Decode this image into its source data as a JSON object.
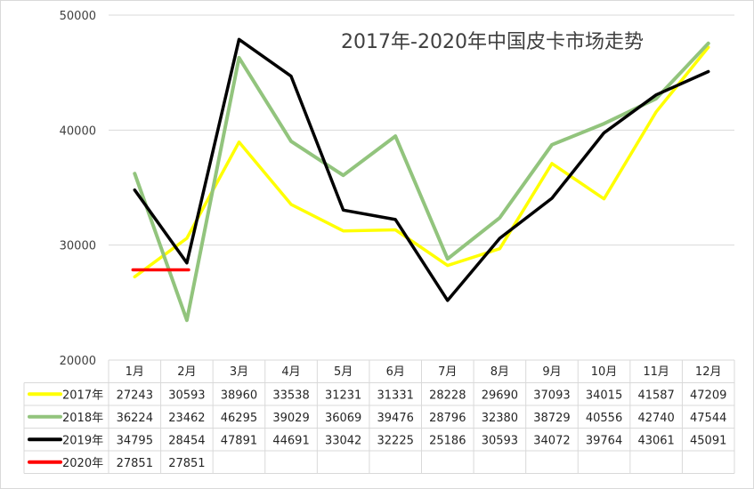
{
  "chart_data": {
    "type": "line",
    "title": "2017年-2020年中国皮卡市场走势",
    "xlabel": "",
    "ylabel": "",
    "categories": [
      "1月",
      "2月",
      "3月",
      "4月",
      "5月",
      "6月",
      "7月",
      "8月",
      "9月",
      "10月",
      "11月",
      "12月"
    ],
    "ylim": [
      20000,
      50000
    ],
    "yticks": [
      20000,
      30000,
      40000,
      50000
    ],
    "grid": true,
    "legend": "data-table-left",
    "series": [
      {
        "name": "2017年",
        "color": "#ffff00",
        "values": [
          27243,
          30593,
          38960,
          33538,
          31231,
          31331,
          28228,
          29690,
          37093,
          34015,
          41587,
          47209
        ]
      },
      {
        "name": "2018年",
        "color": "#92c47d",
        "values": [
          36224,
          23462,
          46295,
          39029,
          36069,
          39476,
          28796,
          32380,
          38729,
          40556,
          42740,
          47544
        ]
      },
      {
        "name": "2019年",
        "color": "#000000",
        "values": [
          34795,
          28454,
          47891,
          44691,
          33042,
          32225,
          25186,
          30593,
          34072,
          39764,
          43061,
          45091
        ]
      },
      {
        "name": "2020年",
        "color": "#ff0000",
        "values": [
          27851,
          27851,
          null,
          null,
          null,
          null,
          null,
          null,
          null,
          null,
          null,
          null
        ]
      }
    ]
  }
}
